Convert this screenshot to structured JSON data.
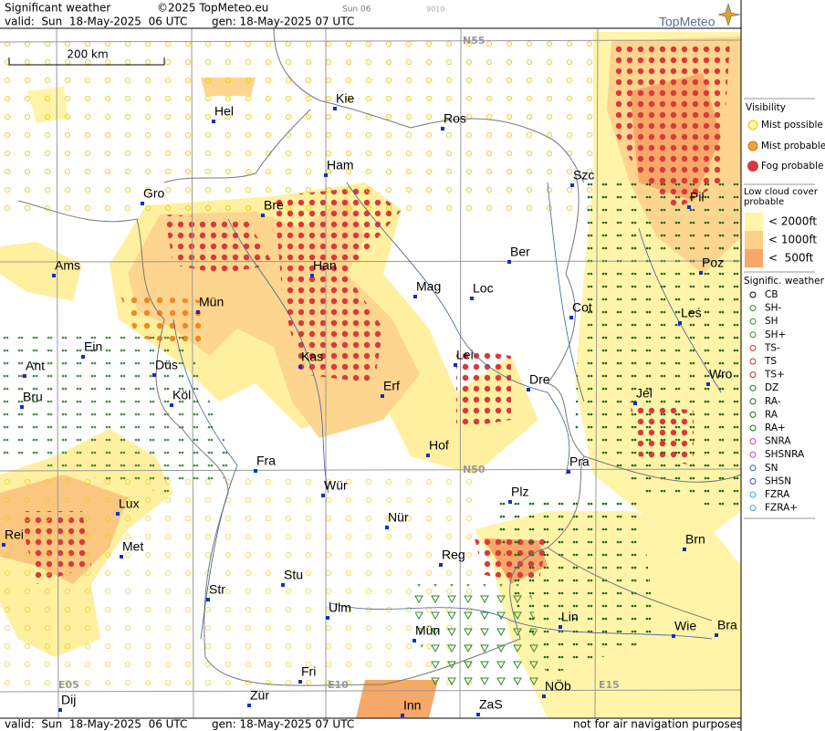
{
  "header": {
    "title": "Significant weather",
    "copyright": "©2025 TopMeteo.eu",
    "run": "Sun 06",
    "code": "9010",
    "valid": "valid:  Sun  18-May-2025  06 UTC",
    "gen": "gen: 18-May-2025 07 UTC",
    "logo": "TopMeteo"
  },
  "scale": "200 km",
  "grid_labels": [
    "N55",
    "N50",
    "E05",
    "E10",
    "E15"
  ],
  "cities": [
    "Hel",
    "Kie",
    "Ros",
    "Ham",
    "Szc",
    "Gro",
    "Bre",
    "Pił",
    "Ber",
    "Ams",
    "Han",
    "Poz",
    "Mag",
    "Loc",
    "Cot",
    "Mün",
    "Leś",
    "Ein",
    "Kas",
    "Lei",
    "Ant",
    "Düs",
    "Dre",
    "Wro",
    "Erf",
    "Köl",
    "Jel",
    "Bru",
    "Hof",
    "Fra",
    "Pra",
    "Wür",
    "Plz",
    "Lux",
    "Nür",
    "Rei",
    "Brn",
    "Met",
    "Reg",
    "Stu",
    "Str",
    "Ulm",
    "Lin",
    "Wie",
    "Bra",
    "Mün",
    "Fri",
    "NÖb",
    "Dij",
    "Zür",
    "Inn",
    "ZaS"
  ],
  "legend": {
    "visibility_title": "Visibility",
    "visibility": [
      "Mist possible",
      "Mist probable",
      "Fog probable"
    ],
    "cloud_title": "Low cloud cover probable",
    "cloud": [
      "< 2000ft",
      "< 1000ft",
      "<  500ft"
    ],
    "weather_title": "Signific. weather",
    "weather": [
      "CB",
      "SH-",
      "SH",
      "SH+",
      "TS-",
      "TS",
      "TS+",
      "DZ",
      "RA-",
      "RA",
      "RA+",
      "SNRA",
      "SHSNRA",
      "SN",
      "SHSN",
      "FZRA",
      "FZRA+"
    ]
  },
  "footer": {
    "valid": "valid:  Sun  18-May-2025  06 UTC",
    "gen": "gen: 18-May-2025 07 UTC",
    "note": "not for air navigation purposes"
  }
}
